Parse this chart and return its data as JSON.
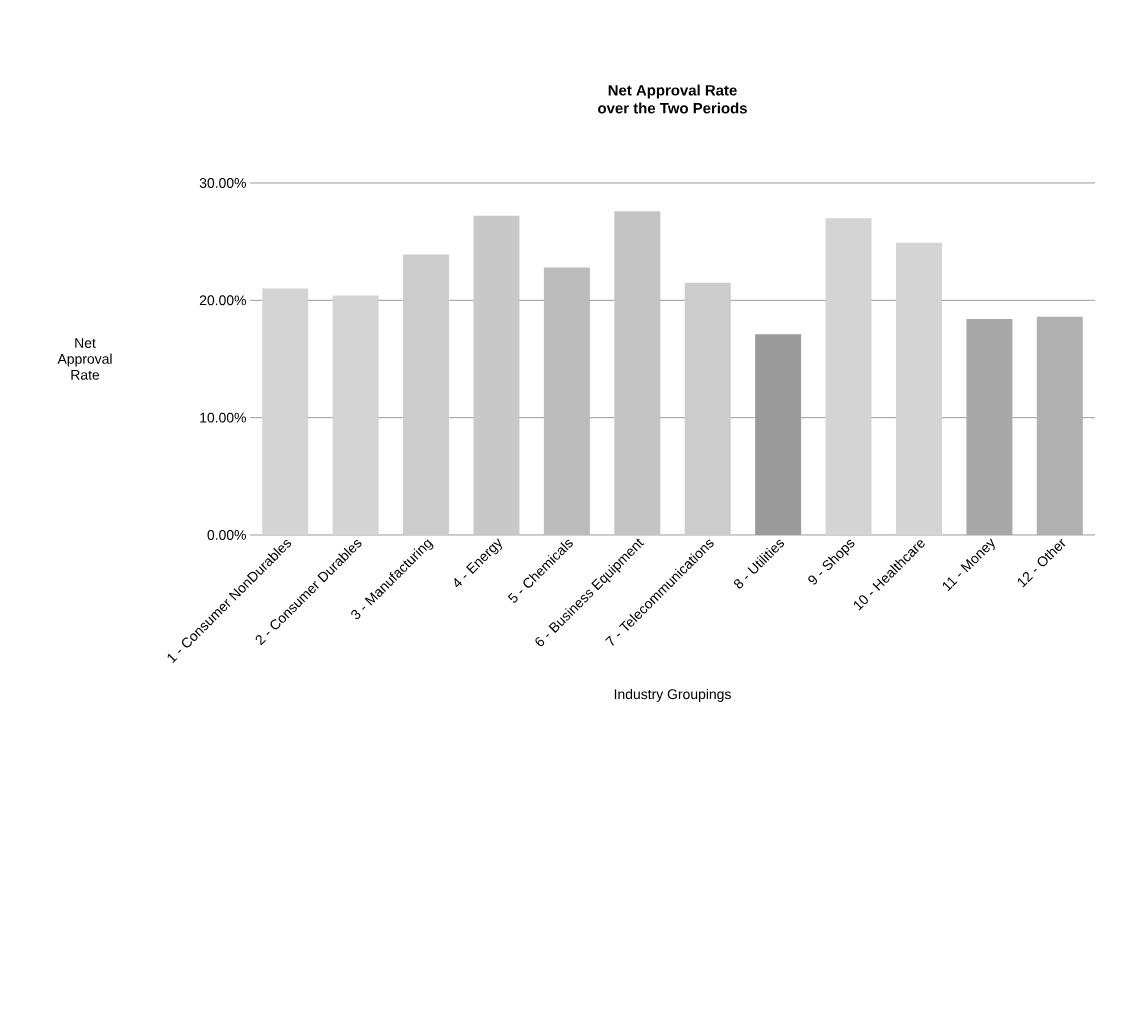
{
  "chart_data": {
    "type": "bar",
    "title": "Net Approval Rate\nover the Two Periods",
    "xlabel": "Industry Groupings",
    "ylabel": "Net Approval Rate",
    "categories": [
      "1 - Consumer NonDurables",
      "2 - Consumer Durables",
      "3 - Manufacturing",
      "4 - Energy",
      "5 - Chemicals",
      "6 - Business Equipment",
      "7 - Telecommunications",
      "8 - Utilities",
      "9 - Shops",
      "10 - Healthcare",
      "11 - Money",
      "12 - Other"
    ],
    "values": [
      21.0,
      20.4,
      23.9,
      27.2,
      22.8,
      27.6,
      21.5,
      17.1,
      27.0,
      24.9,
      18.4,
      18.6
    ],
    "colors": [
      "#d4d4d4",
      "#d4d4d4",
      "#cccccc",
      "#c8c8c8",
      "#bcbcbc",
      "#c4c4c4",
      "#cccccc",
      "#9a9a9a",
      "#d4d4d4",
      "#d4d4d4",
      "#a8a8a8",
      "#b0b0b0"
    ],
    "ylim": [
      0,
      30
    ],
    "yticks": [
      {
        "value": 0,
        "label": "0.00%"
      },
      {
        "value": 10,
        "label": "10.00%"
      },
      {
        "value": 20,
        "label": "20.00%"
      },
      {
        "value": 30,
        "label": "30.00%"
      }
    ],
    "grid": "y"
  }
}
